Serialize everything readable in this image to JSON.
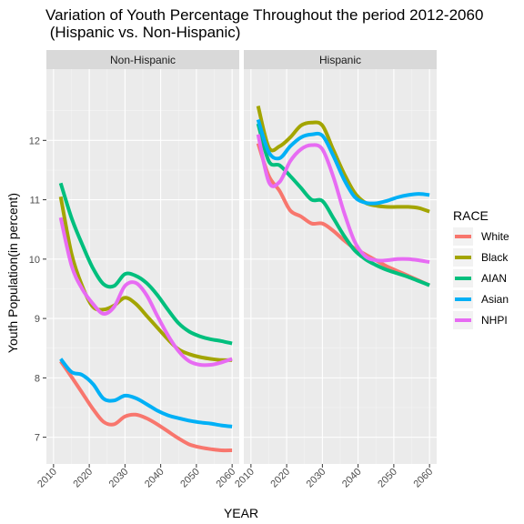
{
  "chart_data": {
    "type": "line",
    "title_line1": "Variation of Youth Percentage Throughout the period 2012-2060",
    "title_line2": " (Hispanic vs. Non-Hispanic)",
    "xlabel": "YEAR",
    "ylabel": "Youth Population(in percent)",
    "xlim": [
      2008,
      2062
    ],
    "ylim": [
      6.55,
      13.2
    ],
    "x_ticks": [
      2010,
      2020,
      2030,
      2040,
      2050,
      2060
    ],
    "y_ticks": [
      7,
      8,
      9,
      10,
      11,
      12
    ],
    "x": [
      2012,
      2015,
      2018,
      2021,
      2024,
      2027,
      2030,
      2033,
      2036,
      2039,
      2042,
      2045,
      2048,
      2051,
      2054,
      2057,
      2060
    ],
    "legend": {
      "title": "RACE",
      "position": "right",
      "entries": [
        "White",
        "Black",
        "AIAN",
        "Asian",
        "NHPI"
      ]
    },
    "colors": {
      "White": "#F8766D",
      "Black": "#A3A500",
      "AIAN": "#00BF7D",
      "Asian": "#00B0F6",
      "NHPI": "#E76BF3"
    },
    "grid": true,
    "panels": [
      {
        "name": "Non-Hispanic",
        "series": [
          {
            "name": "White",
            "values": [
              8.28,
              8.02,
              7.75,
              7.48,
              7.26,
              7.22,
              7.35,
              7.38,
              7.32,
              7.22,
              7.1,
              6.98,
              6.88,
              6.83,
              6.8,
              6.78,
              6.78
            ]
          },
          {
            "name": "Black",
            "values": [
              11.05,
              10.1,
              9.55,
              9.2,
              9.15,
              9.22,
              9.35,
              9.25,
              9.05,
              8.85,
              8.65,
              8.48,
              8.4,
              8.35,
              8.32,
              8.3,
              8.3
            ]
          },
          {
            "name": "AIAN",
            "values": [
              11.28,
              10.7,
              10.25,
              9.85,
              9.58,
              9.55,
              9.75,
              9.72,
              9.6,
              9.4,
              9.15,
              8.92,
              8.78,
              8.7,
              8.65,
              8.62,
              8.58
            ]
          },
          {
            "name": "Asian",
            "values": [
              8.32,
              8.1,
              8.05,
              7.9,
              7.65,
              7.62,
              7.7,
              7.66,
              7.56,
              7.45,
              7.37,
              7.32,
              7.28,
              7.25,
              7.23,
              7.2,
              7.18
            ]
          },
          {
            "name": "NHPI",
            "values": [
              10.7,
              9.9,
              9.5,
              9.25,
              9.08,
              9.2,
              9.55,
              9.6,
              9.4,
              9.05,
              8.72,
              8.45,
              8.28,
              8.22,
              8.22,
              8.26,
              8.32
            ]
          }
        ]
      },
      {
        "name": "Hispanic",
        "series": [
          {
            "name": "White",
            "values": [
              11.95,
              11.4,
              11.15,
              10.82,
              10.72,
              10.6,
              10.6,
              10.48,
              10.32,
              10.18,
              10.08,
              9.98,
              9.88,
              9.8,
              9.72,
              9.64,
              9.56
            ]
          },
          {
            "name": "Black",
            "values": [
              12.58,
              11.88,
              11.9,
              12.05,
              12.25,
              12.3,
              12.25,
              11.85,
              11.45,
              11.12,
              10.95,
              10.9,
              10.88,
              10.88,
              10.88,
              10.86,
              10.8
            ]
          },
          {
            "name": "AIAN",
            "values": [
              12.28,
              11.65,
              11.58,
              11.4,
              11.2,
              11.0,
              10.98,
              10.7,
              10.4,
              10.15,
              10.0,
              9.9,
              9.82,
              9.76,
              9.7,
              9.63,
              9.56
            ]
          },
          {
            "name": "Asian",
            "values": [
              12.35,
              11.8,
              11.7,
              11.9,
              12.05,
              12.1,
              12.08,
              11.75,
              11.35,
              11.05,
              10.95,
              10.94,
              10.98,
              11.04,
              11.08,
              11.1,
              11.08
            ]
          },
          {
            "name": "NHPI",
            "values": [
              12.1,
              11.3,
              11.3,
              11.65,
              11.85,
              11.92,
              11.85,
              11.4,
              10.8,
              10.3,
              10.05,
              9.98,
              9.98,
              10.0,
              10.0,
              9.98,
              9.95
            ]
          }
        ]
      }
    ]
  }
}
